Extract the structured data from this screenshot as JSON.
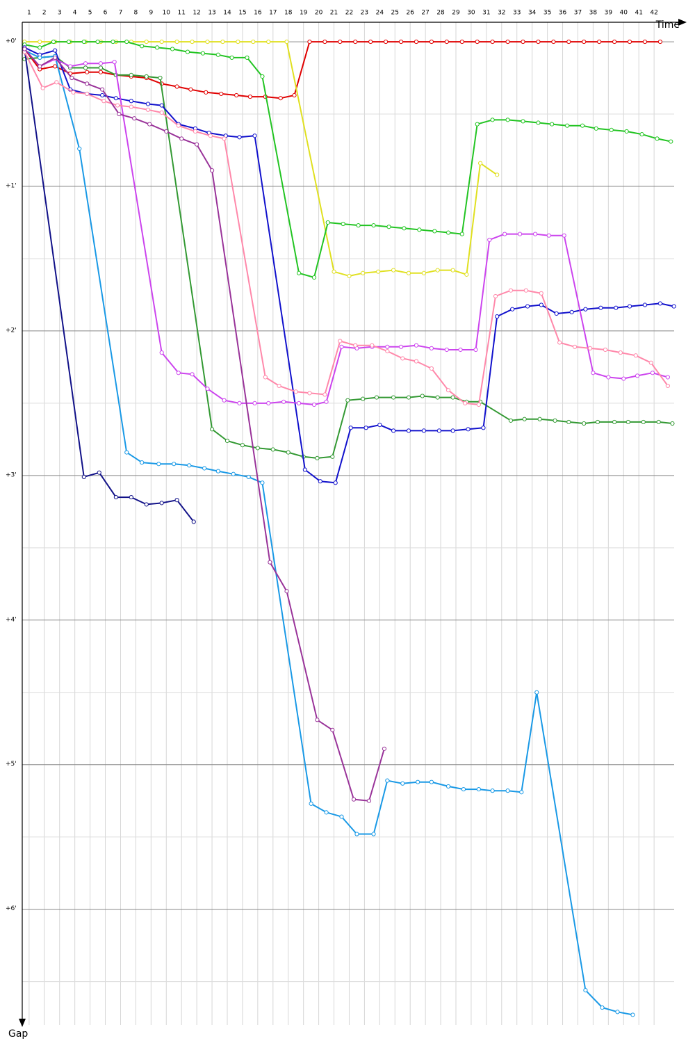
{
  "chart_data": {
    "type": "line",
    "x_label": "Time",
    "y_label": "Gap",
    "xlim": [
      0.55,
      44
    ],
    "xticks": [
      1,
      2,
      3,
      4,
      5,
      6,
      7,
      8,
      9,
      10,
      11,
      12,
      13,
      14,
      15,
      16,
      17,
      18,
      19,
      20,
      21,
      22,
      23,
      24,
      25,
      26,
      27,
      28,
      29,
      30,
      31,
      32,
      33,
      34,
      35,
      36,
      37,
      38,
      39,
      40,
      41,
      42
    ],
    "ylim": [
      -0.135,
      6.8
    ],
    "yticks": [
      {
        "value": 0,
        "label": "+0'"
      },
      {
        "value": 1,
        "label": "+1'"
      },
      {
        "value": 2,
        "label": "+2'"
      },
      {
        "value": 3,
        "label": "+3'"
      },
      {
        "value": 4,
        "label": "+4'"
      },
      {
        "value": 5,
        "label": "+5'"
      },
      {
        "value": 6,
        "label": "+6'"
      }
    ],
    "yticks_minor": [
      0.5,
      1.5,
      2.5,
      3.5,
      4.5,
      5.5,
      6.5
    ],
    "grid": true,
    "series": [
      {
        "color": "#e00000",
        "x": [
          0.7,
          1.7,
          2.7,
          3.7,
          4.8,
          5.7,
          6.7,
          7.7,
          8.7,
          9.7,
          10.7,
          11.6,
          12.6,
          13.6,
          14.6,
          15.5,
          16.5,
          17.5,
          18.4,
          19.4,
          20.4,
          21.4,
          22.4,
          23.4,
          24.4,
          25.4,
          26.4,
          27.4,
          28.4,
          29.4,
          30.4,
          31.4,
          32.4,
          33.4,
          34.4,
          35.4,
          36.4,
          37.4,
          38.4,
          39.4,
          40.4,
          41.4,
          42.4
        ],
        "values": [
          0.05,
          0.19,
          0.17,
          0.22,
          0.21,
          0.21,
          0.23,
          0.24,
          0.25,
          0.29,
          0.31,
          0.33,
          0.35,
          0.36,
          0.37,
          0.38,
          0.38,
          0.39,
          0.37,
          0,
          0,
          0,
          0,
          0,
          0,
          0,
          0,
          0,
          0,
          0,
          0,
          0,
          0,
          0,
          0,
          0,
          0,
          0,
          0,
          0,
          0,
          0,
          0
        ]
      },
      {
        "color": "#e0e020",
        "x": [
          0.7,
          1.7,
          2.7,
          3.7,
          4.7,
          5.7,
          6.7,
          7.7,
          8.7,
          9.7,
          10.7,
          11.7,
          12.7,
          13.7,
          14.7,
          15.7,
          16.7,
          17.9,
          21.0,
          22.0,
          22.9,
          23.9,
          24.9,
          25.9,
          26.9,
          27.8,
          28.8,
          29.7,
          30.6,
          31.7
        ],
        "values": [
          0,
          0,
          0,
          0,
          0,
          0,
          0,
          0,
          0,
          0,
          0,
          0,
          0,
          0,
          0,
          0,
          0,
          0,
          1.59,
          1.62,
          1.6,
          1.59,
          1.58,
          1.6,
          1.6,
          1.58,
          1.58,
          1.61,
          0.84,
          0.92
        ]
      },
      {
        "color": "#22c422",
        "x": [
          0.7,
          1.7,
          2.6,
          3.6,
          4.6,
          5.5,
          6.5,
          7.4,
          8.4,
          9.4,
          10.4,
          11.4,
          12.4,
          13.4,
          14.3,
          15.3,
          16.3,
          18.7,
          19.7,
          20.6,
          21.6,
          22.6,
          23.6,
          24.6,
          25.6,
          26.6,
          27.6,
          28.5,
          29.4,
          30.4,
          31.4,
          32.4,
          33.4,
          34.4,
          35.3,
          36.3,
          37.3,
          38.2,
          39.2,
          40.2,
          41.2,
          42.2,
          43.1
        ],
        "values": [
          0.02,
          0.04,
          0,
          0,
          0,
          0,
          0,
          0,
          0.03,
          0.04,
          0.05,
          0.07,
          0.08,
          0.09,
          0.11,
          0.11,
          0.24,
          1.6,
          1.63,
          1.25,
          1.26,
          1.27,
          1.27,
          1.28,
          1.29,
          1.3,
          1.31,
          1.32,
          1.33,
          0.57,
          0.54,
          0.54,
          0.55,
          0.56,
          0.57,
          0.58,
          0.58,
          0.6,
          0.61,
          0.62,
          0.64,
          0.67,
          0.69
        ]
      },
      {
        "color": "#339933",
        "x": [
          0.7,
          1.7,
          2.7,
          3.7,
          4.7,
          5.7,
          6.7,
          7.7,
          8.7,
          9.6,
          13.0,
          14.0,
          15.0,
          16.0,
          17.0,
          18.0,
          19.0,
          19.9,
          20.9,
          21.9,
          22.9,
          23.8,
          24.9,
          25.9,
          26.8,
          27.8,
          28.8,
          29.7,
          30.6,
          32.6,
          33.5,
          34.5,
          35.5,
          36.4,
          37.4,
          38.3,
          39.4,
          40.3,
          41.3,
          42.3,
          43.2
        ],
        "values": [
          0.12,
          0.11,
          0.1,
          0.18,
          0.18,
          0.18,
          0.23,
          0.23,
          0.24,
          0.25,
          2.68,
          2.76,
          2.79,
          2.81,
          2.82,
          2.84,
          2.87,
          2.88,
          2.87,
          2.48,
          2.47,
          2.46,
          2.46,
          2.46,
          2.45,
          2.46,
          2.46,
          2.49,
          2.49,
          2.62,
          2.61,
          2.61,
          2.62,
          2.63,
          2.64,
          2.63,
          2.63,
          2.63,
          2.63,
          2.63,
          2.64
        ]
      },
      {
        "color": "#1111cc",
        "x": [
          0.7,
          1.7,
          2.7,
          3.7,
          4.8,
          5.8,
          6.7,
          7.7,
          8.8,
          9.7,
          10.8,
          11.9,
          12.8,
          13.9,
          14.8,
          15.8,
          19.1,
          20.1,
          21.1,
          22.1,
          23.1,
          24.0,
          24.9,
          25.9,
          26.9,
          27.9,
          28.8,
          29.8,
          30.8,
          31.7,
          32.7,
          33.7,
          34.6,
          35.6,
          36.6,
          37.5,
          38.5,
          39.5,
          40.4,
          41.4,
          42.4,
          43.3
        ],
        "values": [
          0.04,
          0.09,
          0.06,
          0.33,
          0.36,
          0.37,
          0.39,
          0.41,
          0.43,
          0.44,
          0.57,
          0.6,
          0.63,
          0.65,
          0.66,
          0.65,
          2.96,
          3.04,
          3.05,
          2.67,
          2.67,
          2.65,
          2.69,
          2.69,
          2.69,
          2.69,
          2.69,
          2.68,
          2.67,
          1.9,
          1.85,
          1.83,
          1.82,
          1.88,
          1.87,
          1.85,
          1.84,
          1.84,
          1.83,
          1.82,
          1.81,
          1.83
        ]
      },
      {
        "color": "#111188",
        "x": [
          0.7,
          4.6,
          5.6,
          6.7,
          7.7,
          8.7,
          9.7,
          10.7,
          11.8
        ],
        "values": [
          0.05,
          3.01,
          2.98,
          3.15,
          3.15,
          3.2,
          3.19,
          3.17,
          3.32
        ]
      },
      {
        "color": "#1999e6",
        "x": [
          0.7,
          1.7,
          2.7,
          4.3,
          7.4,
          8.4,
          9.5,
          10.5,
          11.5,
          12.5,
          13.4,
          14.4,
          15.4,
          16.3,
          19.5,
          20.5,
          21.5,
          22.5,
          23.6,
          24.5,
          25.5,
          26.5,
          27.4,
          28.5,
          29.5,
          30.5,
          31.4,
          32.4,
          33.3,
          34.3,
          37.5,
          38.6,
          39.6,
          40.6
        ],
        "values": [
          0.06,
          0.11,
          0.1,
          0.74,
          2.84,
          2.91,
          2.92,
          2.92,
          2.93,
          2.95,
          2.97,
          2.99,
          3.01,
          3.05,
          5.27,
          5.33,
          5.36,
          5.48,
          5.48,
          5.11,
          5.13,
          5.12,
          5.12,
          5.15,
          5.17,
          5.17,
          5.18,
          5.18,
          5.19,
          4.5,
          6.56,
          6.68,
          6.71,
          6.73
        ]
      },
      {
        "color": "#cc44ee",
        "x": [
          0.7,
          1.7,
          2.7,
          3.7,
          4.7,
          5.7,
          6.6,
          9.7,
          10.8,
          11.7,
          12.7,
          13.8,
          14.8,
          15.8,
          16.7,
          17.7,
          18.7,
          19.7,
          20.5,
          21.5,
          22.5,
          23.5,
          24.5,
          25.4,
          26.4,
          27.4,
          28.4,
          29.3,
          30.3,
          31.2,
          32.2,
          33.2,
          34.2,
          35.1,
          36.1,
          38.0,
          39.0,
          40.0,
          40.9,
          41.9,
          42.9
        ],
        "values": [
          0.05,
          0.17,
          0.12,
          0.17,
          0.15,
          0.15,
          0.14,
          2.15,
          2.29,
          2.3,
          2.4,
          2.48,
          2.5,
          2.5,
          2.5,
          2.49,
          2.5,
          2.51,
          2.49,
          2.11,
          2.12,
          2.11,
          2.11,
          2.11,
          2.1,
          2.12,
          2.13,
          2.13,
          2.13,
          1.37,
          1.33,
          1.33,
          1.33,
          1.34,
          1.34,
          2.29,
          2.32,
          2.33,
          2.31,
          2.29,
          2.32
        ]
      },
      {
        "color": "#ff88aa",
        "x": [
          0.7,
          1.9,
          2.8,
          3.9,
          4.8,
          5.9,
          6.8,
          7.7,
          8.8,
          9.7,
          10.8,
          11.9,
          12.9,
          13.8,
          16.5,
          17.4,
          18.5,
          19.4,
          20.4,
          21.4,
          22.4,
          23.5,
          24.5,
          25.5,
          26.4,
          27.4,
          28.5,
          29.6,
          30.5,
          31.6,
          32.6,
          33.6,
          34.6,
          35.8,
          36.8,
          37.8,
          38.8,
          39.8,
          40.8,
          41.8,
          42.9
        ],
        "values": [
          0.07,
          0.32,
          0.28,
          0.35,
          0.36,
          0.41,
          0.44,
          0.45,
          0.47,
          0.49,
          0.58,
          0.62,
          0.65,
          0.67,
          2.32,
          2.38,
          2.42,
          2.43,
          2.44,
          2.07,
          2.1,
          2.1,
          2.14,
          2.19,
          2.21,
          2.26,
          2.41,
          2.5,
          2.51,
          1.76,
          1.72,
          1.72,
          1.74,
          2.08,
          2.11,
          2.12,
          2.13,
          2.15,
          2.17,
          2.22,
          2.38
        ]
      },
      {
        "color": "#993399",
        "x": [
          0.7,
          1.7,
          2.7,
          3.8,
          4.8,
          5.8,
          6.9,
          7.9,
          8.9,
          10.0,
          11.0,
          12.0,
          13.0,
          16.8,
          17.9,
          19.9,
          20.9,
          22.3,
          23.3,
          24.3
        ],
        "values": [
          0.05,
          0.17,
          0.11,
          0.25,
          0.29,
          0.33,
          0.5,
          0.53,
          0.57,
          0.62,
          0.67,
          0.71,
          0.89,
          3.6,
          3.8,
          4.69,
          4.76,
          5.24,
          5.25,
          4.89
        ]
      }
    ]
  }
}
